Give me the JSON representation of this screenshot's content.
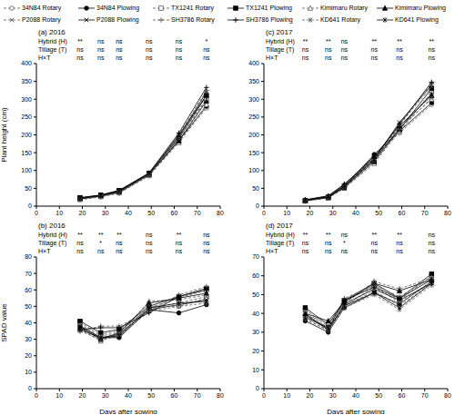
{
  "chart_data": [
    {
      "type": "line",
      "title": "(a) 2016",
      "ylabel": "Plant height (cm)",
      "x": [
        19,
        28,
        36,
        49,
        62,
        74
      ],
      "xlim": [
        0,
        80
      ],
      "xticks": [
        0,
        10,
        20,
        30,
        40,
        50,
        60,
        70,
        80
      ],
      "ylim": [
        0,
        400
      ],
      "yticks": [
        0,
        50,
        100,
        150,
        200,
        250,
        300,
        350,
        400
      ],
      "significance": [
        {
          "label": "Hybrid (H)",
          "values": [
            "**",
            "ns",
            "ns",
            "ns",
            "ns",
            "*"
          ]
        },
        {
          "label": "Tillage (T)",
          "values": [
            "ns",
            "ns",
            "ns",
            "ns",
            "ns",
            "ns"
          ]
        },
        {
          "label": "H×T",
          "values": [
            "ns",
            "ns",
            "ns",
            "ns",
            "ns",
            "ns"
          ]
        }
      ],
      "series": [
        {
          "name": "34N84 Rotary",
          "color": "#555555",
          "marker": "circle_open",
          "line_style": "dashed",
          "values": [
            18,
            26,
            36,
            85,
            180,
            275
          ]
        },
        {
          "name": "34N84 Plowing",
          "color": "#000000",
          "marker": "circle",
          "line_style": "solid",
          "values": [
            20,
            28,
            38,
            88,
            185,
            280
          ]
        },
        {
          "name": "TX1241 Rotary",
          "color": "#555555",
          "marker": "square_open",
          "line_style": "dashed",
          "values": [
            22,
            30,
            42,
            90,
            185,
            300
          ]
        },
        {
          "name": "TX1241 Plowing",
          "color": "#000000",
          "marker": "square",
          "line_style": "solid",
          "values": [
            24,
            31,
            44,
            92,
            190,
            310
          ]
        },
        {
          "name": "Kimimaru Rotary",
          "color": "#555555",
          "marker": "triangle_open",
          "line_style": "dashed",
          "values": [
            19,
            27,
            38,
            86,
            178,
            285
          ]
        },
        {
          "name": "Kimimaru Plowing",
          "color": "#000000",
          "marker": "triangle",
          "line_style": "solid",
          "values": [
            21,
            29,
            40,
            89,
            183,
            295
          ]
        },
        {
          "name": "P2088 Rotary",
          "color": "#555555",
          "marker": "x",
          "line_style": "dashed",
          "values": [
            20,
            28,
            40,
            88,
            190,
            315
          ]
        },
        {
          "name": "P2088 Plowing",
          "color": "#000000",
          "marker": "x",
          "line_style": "solid",
          "values": [
            22,
            30,
            42,
            90,
            195,
            320
          ]
        },
        {
          "name": "SH3786 Rotary",
          "color": "#555555",
          "marker": "plus",
          "line_style": "dashed",
          "values": [
            21,
            29,
            41,
            90,
            200,
            325
          ]
        },
        {
          "name": "SH3786 Plowing",
          "color": "#000000",
          "marker": "plus",
          "line_style": "solid",
          "values": [
            23,
            31,
            44,
            93,
            205,
            333
          ]
        },
        {
          "name": "KD641 Rotary",
          "color": "#555555",
          "marker": "asterisk",
          "line_style": "dashed",
          "values": [
            20,
            28,
            40,
            90,
            195,
            300
          ]
        },
        {
          "name": "KD641 Plowing",
          "color": "#000000",
          "marker": "asterisk",
          "line_style": "solid",
          "values": [
            22,
            30,
            42,
            92,
            200,
            310
          ]
        }
      ]
    },
    {
      "type": "line",
      "title": "(b) 2016",
      "ylabel": "SPAD value",
      "xlabel": "Days after sowing",
      "x": [
        19,
        28,
        36,
        49,
        62,
        74
      ],
      "xlim": [
        0,
        80
      ],
      "xticks": [
        0,
        10,
        20,
        30,
        40,
        50,
        60,
        70,
        80
      ],
      "ylim": [
        0,
        80
      ],
      "yticks": [
        0,
        10,
        20,
        30,
        40,
        50,
        60,
        70,
        80
      ],
      "significance": [
        {
          "label": "Hybrid (H)",
          "values": [
            "**",
            "**",
            "**",
            "ns",
            "**",
            "ns"
          ]
        },
        {
          "label": "Tillage (T)",
          "values": [
            "ns",
            "*",
            "ns",
            "ns",
            "ns",
            "ns"
          ]
        },
        {
          "label": "H×T",
          "values": [
            "ns",
            "ns",
            "ns",
            "ns",
            "ns",
            "ns"
          ]
        }
      ],
      "series": [
        {
          "name": "34N84 Rotary",
          "color": "#555555",
          "marker": "circle_open",
          "line_style": "dashed",
          "values": [
            37,
            30,
            32,
            47,
            50,
            55
          ]
        },
        {
          "name": "34N84 Plowing",
          "color": "#000000",
          "marker": "circle",
          "line_style": "solid",
          "values": [
            38,
            31,
            31,
            48,
            46,
            51
          ]
        },
        {
          "name": "TX1241 Rotary",
          "color": "#555555",
          "marker": "square_open",
          "line_style": "dashed",
          "values": [
            40,
            33,
            35,
            49,
            55,
            60
          ]
        },
        {
          "name": "TX1241 Plowing",
          "color": "#000000",
          "marker": "square",
          "line_style": "solid",
          "values": [
            41,
            34,
            36,
            50,
            56,
            61
          ]
        },
        {
          "name": "Kimimaru Rotary",
          "color": "#555555",
          "marker": "triangle_open",
          "line_style": "dashed",
          "values": [
            36,
            29,
            33,
            53,
            54,
            57
          ]
        },
        {
          "name": "Kimimaru Plowing",
          "color": "#000000",
          "marker": "triangle",
          "line_style": "solid",
          "values": [
            37,
            30,
            34,
            52,
            55,
            58
          ]
        },
        {
          "name": "P2088 Rotary",
          "color": "#555555",
          "marker": "x",
          "line_style": "dashed",
          "values": [
            39,
            32,
            34,
            49,
            52,
            56
          ]
        },
        {
          "name": "P2088 Plowing",
          "color": "#000000",
          "marker": "x",
          "line_style": "solid",
          "values": [
            38,
            31,
            33,
            48,
            51,
            54
          ]
        },
        {
          "name": "SH3786 Rotary",
          "color": "#555555",
          "marker": "plus",
          "line_style": "dashed",
          "values": [
            35,
            38,
            38,
            47,
            57,
            62
          ]
        },
        {
          "name": "SH3786 Plowing",
          "color": "#000000",
          "marker": "plus",
          "line_style": "solid",
          "values": [
            36,
            37,
            37,
            46,
            56,
            60
          ]
        },
        {
          "name": "KD641 Rotary",
          "color": "#555555",
          "marker": "asterisk",
          "line_style": "dashed",
          "values": [
            35,
            30,
            33,
            50,
            50,
            52
          ]
        },
        {
          "name": "KD641 Plowing",
          "color": "#000000",
          "marker": "asterisk",
          "line_style": "solid",
          "values": [
            36,
            31,
            32,
            49,
            52,
            53
          ]
        }
      ]
    },
    {
      "type": "line",
      "title": "(c) 2017",
      "x": [
        18,
        28,
        35,
        48,
        59,
        73
      ],
      "xlim": [
        0,
        80
      ],
      "xticks": [
        0,
        10,
        20,
        30,
        40,
        50,
        60,
        70,
        80
      ],
      "ylim": [
        0,
        400
      ],
      "yticks": [
        0,
        50,
        100,
        150,
        200,
        250,
        300,
        350,
        400
      ],
      "significance": [
        {
          "label": "Hybrid (H)",
          "values": [
            "**",
            "**",
            "ns",
            "**",
            "**",
            "**"
          ]
        },
        {
          "label": "Tillage (T)",
          "values": [
            "ns",
            "ns",
            "ns",
            "ns",
            "ns",
            "ns"
          ]
        },
        {
          "label": "H×T",
          "values": [
            "ns",
            "ns",
            "ns",
            "ns",
            "ns",
            "ns"
          ]
        }
      ],
      "series": [
        {
          "name": "34N84 Rotary",
          "color": "#555555",
          "marker": "circle_open",
          "line_style": "dashed",
          "values": [
            15,
            24,
            52,
            140,
            205,
            285
          ]
        },
        {
          "name": "34N84 Plowing",
          "color": "#000000",
          "marker": "circle",
          "line_style": "solid",
          "values": [
            16,
            26,
            55,
            145,
            210,
            290
          ]
        },
        {
          "name": "TX1241 Rotary",
          "color": "#555555",
          "marker": "square_open",
          "line_style": "dashed",
          "values": [
            14,
            23,
            50,
            120,
            210,
            320
          ]
        },
        {
          "name": "TX1241 Plowing",
          "color": "#000000",
          "marker": "square",
          "line_style": "solid",
          "values": [
            15,
            24,
            52,
            125,
            215,
            330
          ]
        },
        {
          "name": "Kimimaru Rotary",
          "color": "#555555",
          "marker": "triangle_open",
          "line_style": "dashed",
          "values": [
            16,
            27,
            58,
            135,
            220,
            300
          ]
        },
        {
          "name": "Kimimaru Plowing",
          "color": "#000000",
          "marker": "triangle",
          "line_style": "solid",
          "values": [
            17,
            28,
            60,
            140,
            225,
            310
          ]
        },
        {
          "name": "P2088 Rotary",
          "color": "#555555",
          "marker": "x",
          "line_style": "dashed",
          "values": [
            15,
            25,
            54,
            130,
            230,
            335
          ]
        },
        {
          "name": "P2088 Plowing",
          "color": "#000000",
          "marker": "x",
          "line_style": "solid",
          "values": [
            16,
            26,
            56,
            132,
            235,
            340
          ]
        },
        {
          "name": "SH3786 Rotary",
          "color": "#555555",
          "marker": "plus",
          "line_style": "dashed",
          "values": [
            17,
            28,
            60,
            130,
            225,
            345
          ]
        },
        {
          "name": "SH3786 Plowing",
          "color": "#000000",
          "marker": "plus",
          "line_style": "solid",
          "values": [
            18,
            29,
            62,
            135,
            230,
            348
          ]
        },
        {
          "name": "KD641 Rotary",
          "color": "#555555",
          "marker": "asterisk",
          "line_style": "dashed",
          "values": [
            15,
            25,
            53,
            128,
            212,
            305
          ]
        },
        {
          "name": "KD641 Plowing",
          "color": "#000000",
          "marker": "asterisk",
          "line_style": "solid",
          "values": [
            16,
            26,
            55,
            130,
            218,
            315
          ]
        }
      ]
    },
    {
      "type": "line",
      "title": "(d) 2017",
      "xlabel": "Days after sowing",
      "x": [
        18,
        28,
        35,
        48,
        59,
        73
      ],
      "xlim": [
        0,
        80
      ],
      "xticks": [
        0,
        10,
        20,
        30,
        40,
        50,
        60,
        70,
        80
      ],
      "ylim": [
        0,
        70
      ],
      "yticks": [
        0,
        10,
        20,
        30,
        40,
        50,
        60,
        70
      ],
      "significance": [
        {
          "label": "Hybrid (H)",
          "values": [
            "**",
            "**",
            "ns",
            "**",
            "**",
            "ns"
          ]
        },
        {
          "label": "Tillage (T)",
          "values": [
            "ns",
            "ns",
            "*",
            "ns",
            "ns",
            "ns"
          ]
        },
        {
          "label": "H×T",
          "values": [
            "ns",
            "ns",
            "ns",
            "ns",
            "ns",
            "ns"
          ]
        }
      ],
      "series": [
        {
          "name": "34N84 Rotary",
          "color": "#555555",
          "marker": "circle_open",
          "line_style": "dashed",
          "values": [
            37,
            31,
            44,
            52,
            44,
            56
          ]
        },
        {
          "name": "34N84 Plowing",
          "color": "#000000",
          "marker": "circle",
          "line_style": "solid",
          "values": [
            36,
            30,
            43,
            51,
            45,
            57
          ]
        },
        {
          "name": "TX1241 Rotary",
          "color": "#555555",
          "marker": "square_open",
          "line_style": "dashed",
          "values": [
            42,
            33,
            46,
            55,
            47,
            60
          ]
        },
        {
          "name": "TX1241 Plowing",
          "color": "#000000",
          "marker": "square",
          "line_style": "solid",
          "values": [
            43,
            34,
            47,
            56,
            48,
            61
          ]
        },
        {
          "name": "Kimimaru Rotary",
          "color": "#555555",
          "marker": "triangle_open",
          "line_style": "dashed",
          "values": [
            39,
            35,
            45,
            57,
            53,
            59
          ]
        },
        {
          "name": "Kimimaru Plowing",
          "color": "#000000",
          "marker": "triangle",
          "line_style": "solid",
          "values": [
            40,
            36,
            46,
            56,
            52,
            58
          ]
        },
        {
          "name": "P2088 Rotary",
          "color": "#555555",
          "marker": "x",
          "line_style": "dashed",
          "values": [
            41,
            32,
            44,
            54,
            46,
            57
          ]
        },
        {
          "name": "P2088 Plowing",
          "color": "#000000",
          "marker": "x",
          "line_style": "solid",
          "values": [
            40,
            31,
            45,
            53,
            47,
            56
          ]
        },
        {
          "name": "SH3786 Rotary",
          "color": "#555555",
          "marker": "plus",
          "line_style": "dashed",
          "values": [
            38,
            33,
            48,
            55,
            49,
            59
          ]
        },
        {
          "name": "SH3786 Plowing",
          "color": "#000000",
          "marker": "plus",
          "line_style": "solid",
          "values": [
            39,
            32,
            47,
            54,
            48,
            58
          ]
        },
        {
          "name": "KD641 Rotary",
          "color": "#555555",
          "marker": "asterisk",
          "line_style": "dashed",
          "values": [
            37,
            31,
            43,
            50,
            42,
            55
          ]
        },
        {
          "name": "KD641 Plowing",
          "color": "#000000",
          "marker": "asterisk",
          "line_style": "solid",
          "values": [
            38,
            32,
            44,
            51,
            43,
            56
          ]
        }
      ]
    }
  ]
}
